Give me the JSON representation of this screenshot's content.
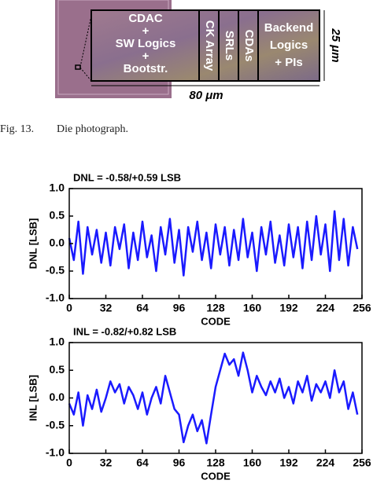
{
  "figure": {
    "blocks": [
      [
        "CDAC",
        "+",
        "SW Logics",
        "+",
        "Bootstr."
      ],
      [
        "CK Array"
      ],
      [
        "SRLs"
      ],
      [
        "CDAs"
      ],
      [
        "Backend",
        "Logics",
        "+ PIs"
      ]
    ],
    "height_label": "25 μm",
    "width_label": "80 μm",
    "caption_number": "Fig. 13.",
    "caption_text": "Die photograph."
  },
  "chart_data": [
    {
      "type": "line",
      "title": "DNL = -0.58/+0.59 LSB",
      "xlabel": "CODE",
      "ylabel": "DNL [LSB]",
      "color": "#1a1aff",
      "x": [
        0,
        4,
        8,
        12,
        16,
        20,
        24,
        28,
        32,
        36,
        40,
        44,
        48,
        52,
        56,
        60,
        64,
        68,
        72,
        76,
        80,
        84,
        88,
        92,
        96,
        100,
        104,
        108,
        112,
        116,
        120,
        124,
        128,
        132,
        136,
        140,
        144,
        148,
        152,
        156,
        160,
        164,
        168,
        172,
        176,
        180,
        184,
        188,
        192,
        196,
        200,
        204,
        208,
        212,
        216,
        220,
        224,
        228,
        232,
        236,
        240,
        244,
        248,
        252
      ],
      "values": [
        0.1,
        -0.3,
        0.4,
        -0.55,
        0.3,
        -0.2,
        0.25,
        -0.35,
        0.2,
        -0.4,
        0.3,
        -0.1,
        0.35,
        -0.45,
        0.2,
        -0.3,
        0.4,
        -0.25,
        0.15,
        -0.5,
        0.3,
        -0.2,
        0.45,
        -0.35,
        0.25,
        -0.58,
        0.3,
        -0.15,
        0.4,
        -0.3,
        0.2,
        -0.45,
        0.35,
        -0.2,
        0.3,
        -0.4,
        0.25,
        -0.3,
        0.45,
        -0.25,
        0.2,
        -0.5,
        0.3,
        -0.2,
        0.4,
        -0.35,
        0.15,
        -0.4,
        0.35,
        -0.25,
        0.3,
        -0.45,
        0.4,
        -0.3,
        0.5,
        -0.2,
        0.35,
        -0.5,
        0.59,
        -0.3,
        0.45,
        -0.4,
        0.3,
        -0.1
      ],
      "xlim": [
        0,
        256
      ],
      "xticks": [
        0,
        32,
        64,
        96,
        128,
        160,
        192,
        224,
        256
      ],
      "ylim": [
        -1,
        1
      ],
      "yticks": [
        {
          "value": 1,
          "label": "1.0"
        },
        0.5,
        {
          "value": 0,
          "label": "0.0"
        },
        -0.5,
        {
          "value": -1,
          "label": "-1.0"
        }
      ]
    },
    {
      "type": "line",
      "title": "INL = -0.82/+0.82 LSB",
      "xlabel": "CODE",
      "ylabel": "INL [LSB]",
      "color": "#1a1aff",
      "x": [
        0,
        4,
        8,
        12,
        16,
        20,
        24,
        28,
        32,
        36,
        40,
        44,
        48,
        52,
        56,
        60,
        64,
        68,
        72,
        76,
        80,
        84,
        88,
        92,
        96,
        100,
        104,
        108,
        112,
        116,
        120,
        124,
        128,
        132,
        136,
        140,
        144,
        148,
        152,
        156,
        160,
        164,
        168,
        172,
        176,
        180,
        184,
        188,
        192,
        196,
        200,
        204,
        208,
        212,
        216,
        220,
        224,
        228,
        232,
        236,
        240,
        244,
        248,
        252
      ],
      "values": [
        -0.1,
        -0.3,
        0.1,
        -0.5,
        0.05,
        -0.2,
        0.15,
        -0.25,
        0.0,
        0.3,
        0.1,
        0.25,
        -0.1,
        0.2,
        0.05,
        -0.2,
        0.1,
        -0.3,
        0.0,
        0.2,
        -0.1,
        0.4,
        0.1,
        -0.2,
        -0.3,
        -0.8,
        -0.5,
        -0.3,
        -0.6,
        -0.4,
        -0.82,
        -0.3,
        0.2,
        0.5,
        0.8,
        0.6,
        0.7,
        0.4,
        0.82,
        0.5,
        0.1,
        0.4,
        0.2,
        0.05,
        0.3,
        0.1,
        0.35,
        0.0,
        0.2,
        -0.1,
        0.3,
        0.1,
        0.4,
        -0.05,
        0.25,
        0.1,
        0.3,
        0.0,
        0.5,
        0.1,
        0.3,
        -0.2,
        0.1,
        -0.3
      ],
      "xlim": [
        0,
        256
      ],
      "xticks": [
        0,
        32,
        64,
        96,
        128,
        160,
        192,
        224,
        256
      ],
      "ylim": [
        -1,
        1
      ],
      "yticks": [
        {
          "value": 1,
          "label": "1.0"
        },
        0.5,
        {
          "value": 0,
          "label": "0.0"
        },
        -0.5,
        {
          "value": -1,
          "label": "-1.0"
        }
      ]
    }
  ]
}
